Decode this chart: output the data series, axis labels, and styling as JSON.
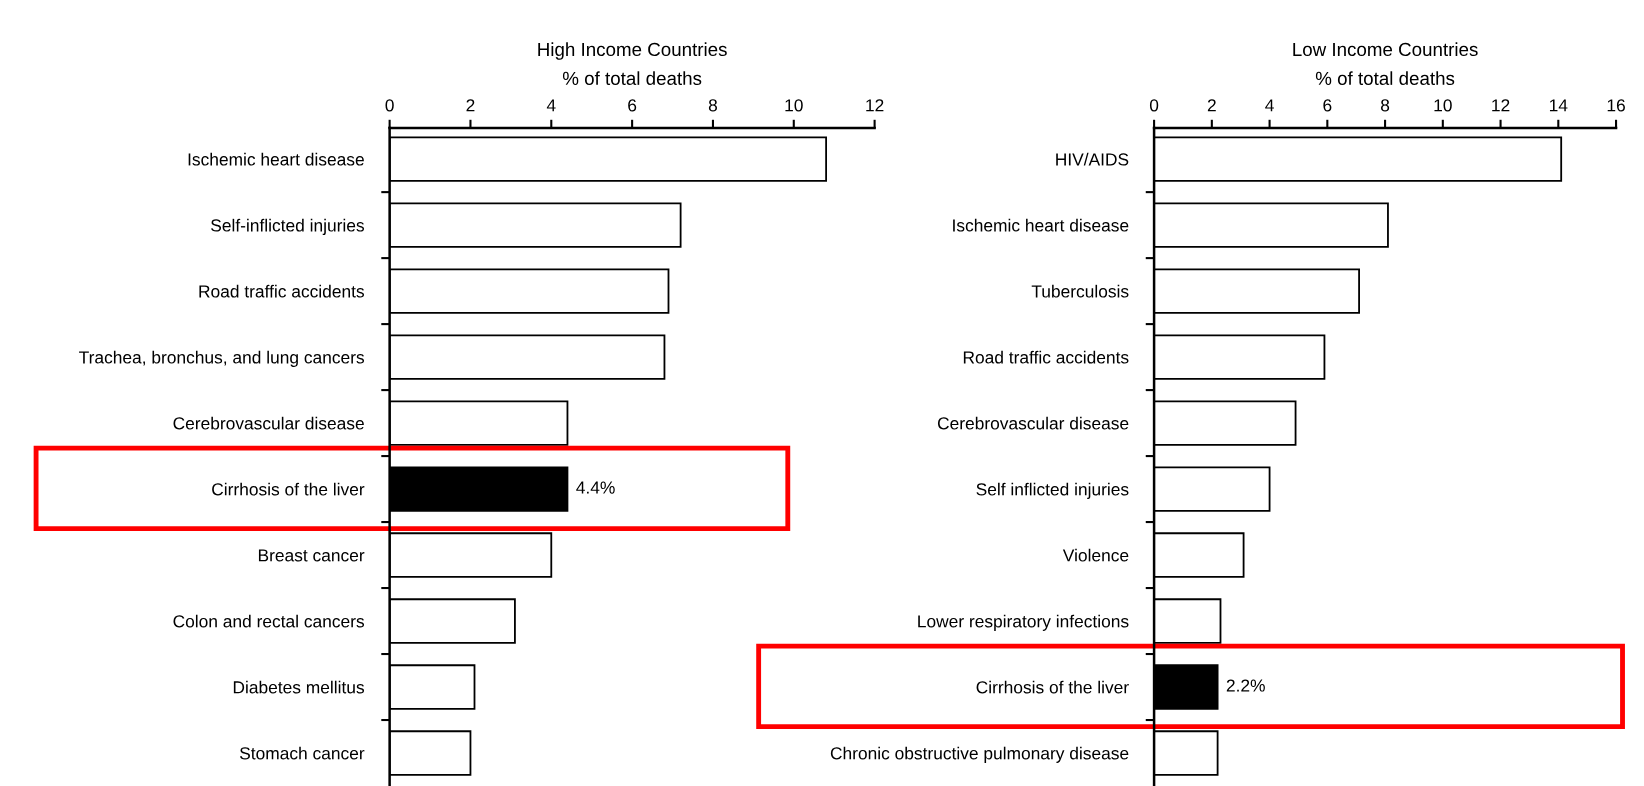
{
  "chart_data": [
    {
      "type": "bar",
      "orientation": "horizontal",
      "title": "High Income Countries",
      "xlabel": "% of total deaths",
      "categories": [
        "Ischemic heart disease",
        "Self-inflicted injuries",
        "Road traffic accidents",
        "Trachea, bronchus, and lung cancers",
        "Cerebrovascular disease",
        "Cirrhosis of the liver",
        "Breast cancer",
        "Colon and rectal cancers",
        "Diabetes mellitus",
        "Stomach cancer"
      ],
      "values": [
        10.8,
        7.2,
        6.9,
        6.8,
        4.4,
        4.4,
        4.0,
        3.1,
        2.1,
        2.0
      ],
      "colors": [
        "#ffffff",
        "#ffffff",
        "#ffffff",
        "#ffffff",
        "#ffffff",
        "#000000",
        "#ffffff",
        "#ffffff",
        "#ffffff",
        "#ffffff"
      ],
      "value_labels": [
        null,
        null,
        null,
        null,
        null,
        "4.4%",
        null,
        null,
        null,
        null
      ],
      "xlim": [
        0,
        12
      ],
      "xticks": [
        0,
        2,
        4,
        6,
        8,
        10,
        12
      ],
      "grid": false
    },
    {
      "type": "bar",
      "orientation": "horizontal",
      "title": "Low Income Countries",
      "xlabel": "% of total deaths",
      "categories": [
        "HIV/AIDS",
        "Ischemic heart disease",
        "Tuberculosis",
        "Road traffic accidents",
        "Cerebrovascular disease",
        "Self inflicted injuries",
        "Violence",
        "Lower respiratory infections",
        "Cirrhosis of the liver",
        "Chronic obstructive pulmonary disease"
      ],
      "values": [
        14.1,
        8.1,
        7.1,
        5.9,
        4.9,
        4.0,
        3.1,
        2.3,
        2.2,
        2.2
      ],
      "colors": [
        "#ffffff",
        "#ffffff",
        "#ffffff",
        "#ffffff",
        "#ffffff",
        "#ffffff",
        "#ffffff",
        "#ffffff",
        "#000000",
        "#ffffff"
      ],
      "value_labels": [
        null,
        null,
        null,
        null,
        null,
        null,
        null,
        null,
        "2.2%",
        null
      ],
      "xlim": [
        0,
        16
      ],
      "xticks": [
        0,
        2,
        4,
        6,
        8,
        10,
        12,
        14,
        16
      ],
      "grid": false
    }
  ]
}
